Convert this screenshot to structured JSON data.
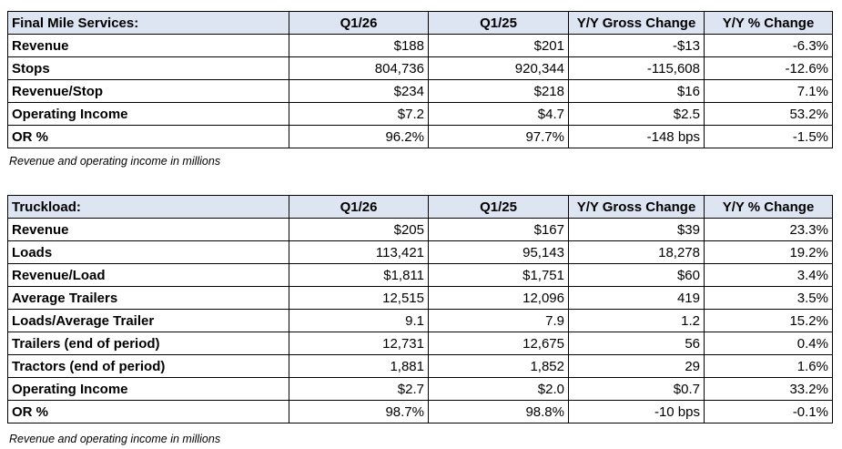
{
  "final_mile": {
    "headers": [
      "Final Mile Services:",
      "Q1/26",
      "Q1/25",
      "Y/Y Gross Change",
      "Y/Y % Change"
    ],
    "rows": [
      [
        "Revenue",
        "$188",
        "$201",
        "-$13",
        "-6.3%"
      ],
      [
        "Stops",
        "804,736",
        "920,344",
        "-115,608",
        "-12.6%"
      ],
      [
        "Revenue/Stop",
        "$234",
        "$218",
        "$16",
        "7.1%"
      ],
      [
        "Operating Income",
        "$7.2",
        "$4.7",
        "$2.5",
        "53.2%"
      ],
      [
        "OR %",
        "96.2%",
        "97.7%",
        "-148 bps",
        "-1.5%"
      ]
    ],
    "note": "Revenue and operating income in millions"
  },
  "truckload": {
    "headers": [
      "Truckload:",
      "Q1/26",
      "Q1/25",
      "Y/Y Gross Change",
      "Y/Y % Change"
    ],
    "rows": [
      [
        "Revenue",
        "$205",
        "$167",
        "$39",
        "23.3%"
      ],
      [
        "Loads",
        "113,421",
        "95,143",
        "18,278",
        "19.2%"
      ],
      [
        "Revenue/Load",
        "$1,811",
        "$1,751",
        "$60",
        "3.4%"
      ],
      [
        "Average Trailers",
        "12,515",
        "12,096",
        "419",
        "3.5%"
      ],
      [
        "Loads/Average Trailer",
        "9.1",
        "7.9",
        "1.2",
        "15.2%"
      ],
      [
        "Trailers (end of period)",
        "12,731",
        "12,675",
        "56",
        "0.4%"
      ],
      [
        "Tractors (end of period)",
        "1,881",
        "1,852",
        "29",
        "1.6%"
      ],
      [
        "Operating Income",
        "$2.7",
        "$2.0",
        "$0.7",
        "33.2%"
      ],
      [
        "OR %",
        "98.7%",
        "98.8%",
        "-10 bps",
        "-0.1%"
      ]
    ],
    "note": "Revenue and operating income in millions"
  }
}
